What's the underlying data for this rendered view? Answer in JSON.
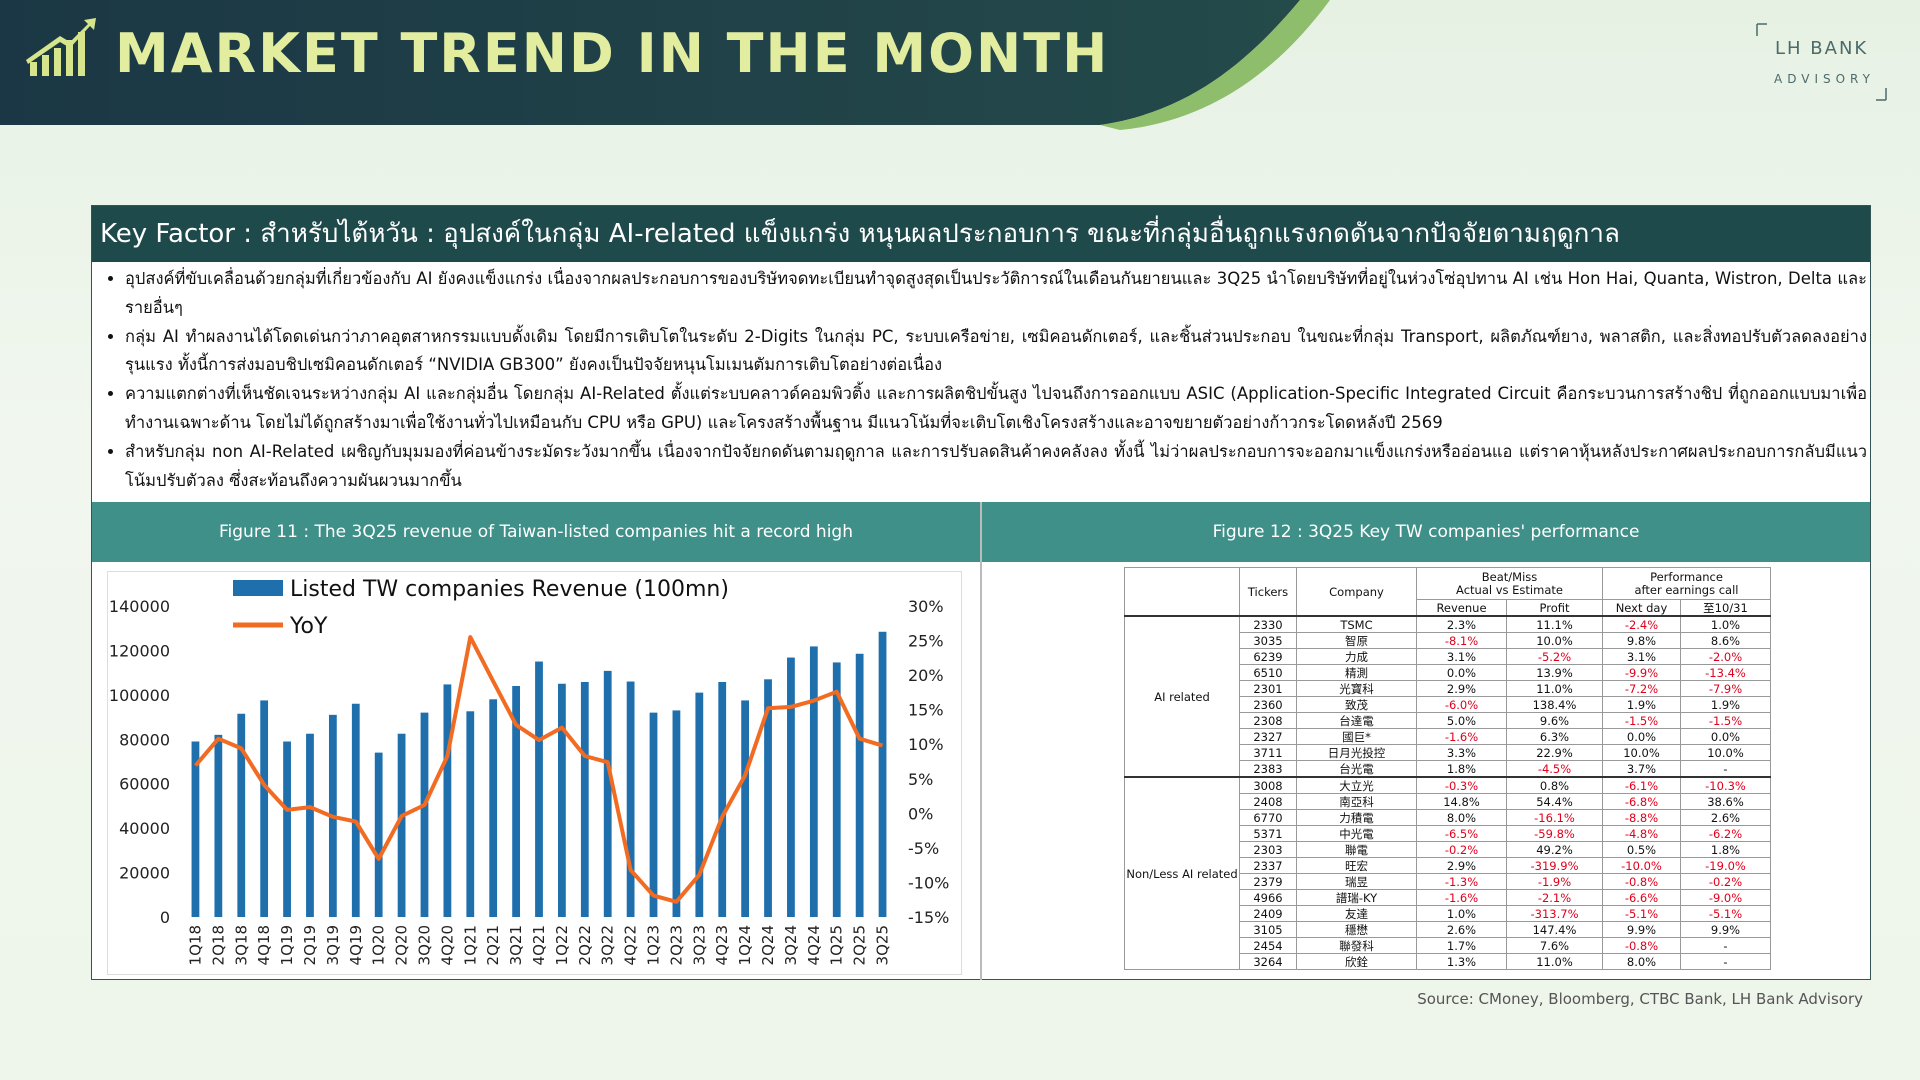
{
  "header": {
    "title": "MARKET TREND IN THE MONTH"
  },
  "logo": {
    "name": "LH BANK",
    "sub": "ADVISORY"
  },
  "key_factor": {
    "title": "Key Factor : สำหรับไต้หวัน : อุปสงค์ในกลุ่ม AI-related แข็งแกร่ง หนุนผลประกอบการ ขณะที่กลุ่มอื่นถูกแรงกดดันจากปัจจัยตามฤดูกาล",
    "bullets": [
      "อุปสงค์ที่ขับเคลื่อนด้วยกลุ่มที่เกี่ยวข้องกับ AI ยังคงแข็งแกร่ง เนื่องจากผลประกอบการของบริษัทจดทะเบียนทำจุดสูงสุดเป็นประวัติการณ์ในเดือนกันยายนและ 3Q25 นำโดยบริษัทที่อยู่ในห่วงโซ่อุปทาน AI เช่น Hon Hai, Quanta, Wistron, Delta และรายอื่นๆ",
      "กลุ่ม AI ทำผลงานได้โดดเด่นกว่าภาคอุตสาหกรรมแบบดั้งเดิม โดยมีการเติบโตในระดับ 2-Digits ในกลุ่ม PC, ระบบเครือข่าย, เซมิคอนดักเตอร์, และชิ้นส่วนประกอบ ในขณะที่กลุ่ม Transport, ผลิตภัณฑ์ยาง, พลาสติก, และสิ่งทอปรับตัวลดลงอย่างรุนแรง ทั้งนี้การส่งมอบชิปเซมิคอนดักเตอร์ “NVIDIA GB300” ยังคงเป็นปัจจัยหนุนโมเมนตัมการเติบโตอย่างต่อเนื่อง",
      "ความแตกต่างที่เห็นชัดเจนระหว่างกลุ่ม AI และกลุ่มอื่น โดยกลุ่ม AI-Related ตั้งแต่ระบบคลาวด์คอมพิวติ้ง และการผลิตชิปขั้นสูง ไปจนถึงการออกแบบ ASIC (Application-Specific Integrated Circuit คือกระบวนการสร้างชิป ที่ถูกออกแบบมาเพื่อทำงานเฉพาะด้าน โดยไม่ได้ถูกสร้างมาเพื่อใช้งานทั่วไปเหมือนกับ CPU หรือ GPU) และโครงสร้างพื้นฐาน มีแนวโน้มที่จะเติบโตเชิงโครงสร้างและอาจขยายตัวอย่างก้าวกระโดดหลังปี 2569",
      "สำหรับกลุ่ม non AI-Related เผชิญกับมุมมองที่ค่อนข้างระมัดระวังมากขึ้น เนื่องจากปัจจัยกดดันตามฤดูกาล และการปรับลดสินค้าคงคลังลง ทั้งนี้ ไม่ว่าผลประกอบการจะออกมาแข็งแกร่งหรืออ่อนแอ แต่ราคาหุ้นหลังประกาศผลประกอบการกลับมีแนวโน้มปรับตัวลง ซึ่งสะท้อนถึงความผันผวนมากขึ้น"
    ]
  },
  "chart_data": {
    "type": "bar",
    "title": "Figure 11 : The 3Q25 revenue of Taiwan-listed companies hit a record high",
    "categories": [
      "1Q18",
      "2Q18",
      "3Q18",
      "4Q18",
      "1Q19",
      "2Q19",
      "3Q19",
      "4Q19",
      "1Q20",
      "2Q20",
      "3Q20",
      "4Q20",
      "1Q21",
      "2Q21",
      "3Q21",
      "4Q21",
      "1Q22",
      "2Q22",
      "3Q22",
      "4Q22",
      "1Q23",
      "2Q23",
      "3Q23",
      "4Q23",
      "1Q24",
      "2Q24",
      "3Q24",
      "4Q24",
      "1Q25",
      "2Q25",
      "3Q25"
    ],
    "series": [
      {
        "name": "Listed TW companies Revenue (100mn)",
        "type": "bar",
        "color": "#1f6fad",
        "values": [
          79000,
          82000,
          91500,
          97500,
          79000,
          82500,
          91000,
          96000,
          74000,
          82500,
          92000,
          104700,
          92600,
          98000,
          104000,
          115000,
          105000,
          105800,
          110800,
          106000,
          92000,
          93000,
          101000,
          105800,
          97500,
          107000,
          116800,
          121800,
          114600,
          118500,
          128400
        ]
      },
      {
        "name": "YoY",
        "type": "line",
        "axis": "y2",
        "color": "#f26b22",
        "values": [
          6.9,
          10.8,
          9.4,
          4.1,
          0.5,
          0.9,
          -0.5,
          -1.2,
          -6.6,
          -0.4,
          1.2,
          8.3,
          25.5,
          19.1,
          12.8,
          10.6,
          12.4,
          8.3,
          7.4,
          -8.2,
          -11.9,
          -12.8,
          -8.9,
          -0.5,
          5.5,
          15.2,
          15.4,
          16.3,
          17.6,
          10.8,
          9.8
        ]
      }
    ],
    "ylim": [
      0,
      140000
    ],
    "yticks": [
      0,
      20000,
      40000,
      60000,
      80000,
      100000,
      120000,
      140000
    ],
    "y2lim": [
      -15,
      30
    ],
    "y2ticks": [
      {
        "value": -15,
        "label": "-15%"
      },
      {
        "value": -10,
        "label": "-10%"
      },
      {
        "value": -5,
        "label": "-5%"
      },
      {
        "value": 0,
        "label": "0%"
      },
      {
        "value": 5,
        "label": "5%"
      },
      {
        "value": 10,
        "label": "10%"
      },
      {
        "value": 15,
        "label": "15%"
      },
      {
        "value": 20,
        "label": "20%"
      },
      {
        "value": 25,
        "label": "25%"
      },
      {
        "value": 30,
        "label": "30%"
      }
    ],
    "grid": false
  },
  "table": {
    "title": "Figure 12 : 3Q25 Key TW companies' performance",
    "header": {
      "tickers": "Tickers",
      "company": "Company",
      "beat": "Beat/Miss",
      "beat_sub": "Actual vs Estimate",
      "revenue": "Revenue",
      "profit": "Profit",
      "perf": "Performance",
      "perf_sub": "after earnings call",
      "next_day": "Next day",
      "to_date": "至10/31"
    },
    "groups": [
      {
        "name": "AI related",
        "rows": [
          [
            "2330",
            "TSMC",
            "2.3%",
            "11.1%",
            "-2.4%",
            "1.0%"
          ],
          [
            "3035",
            "智原",
            "-8.1%",
            "10.0%",
            "9.8%",
            "8.6%"
          ],
          [
            "6239",
            "力成",
            "3.1%",
            "-5.2%",
            "3.1%",
            "-2.0%"
          ],
          [
            "6510",
            "精測",
            "0.0%",
            "13.9%",
            "-9.9%",
            "-13.4%"
          ],
          [
            "2301",
            "光寶科",
            "2.9%",
            "11.0%",
            "-7.2%",
            "-7.9%"
          ],
          [
            "2360",
            "致茂",
            "-6.0%",
            "138.4%",
            "1.9%",
            "1.9%"
          ],
          [
            "2308",
            "台達電",
            "5.0%",
            "9.6%",
            "-1.5%",
            "-1.5%"
          ],
          [
            "2327",
            "國巨*",
            "-1.6%",
            "6.3%",
            "0.0%",
            "0.0%"
          ],
          [
            "3711",
            "日月光投控",
            "3.3%",
            "22.9%",
            "10.0%",
            "10.0%"
          ],
          [
            "2383",
            "台光電",
            "1.8%",
            "-4.5%",
            "3.7%",
            "-"
          ]
        ]
      },
      {
        "name": "Non/Less AI related",
        "rows": [
          [
            "3008",
            "大立光",
            "-0.3%",
            "0.8%",
            "-6.1%",
            "-10.3%"
          ],
          [
            "2408",
            "南亞科",
            "14.8%",
            "54.4%",
            "-6.8%",
            "38.6%"
          ],
          [
            "6770",
            "力積電",
            "8.0%",
            "-16.1%",
            "-8.8%",
            "2.6%"
          ],
          [
            "5371",
            "中光電",
            "-6.5%",
            "-59.8%",
            "-4.8%",
            "-6.2%"
          ],
          [
            "2303",
            "聯電",
            "-0.2%",
            "49.2%",
            "0.5%",
            "1.8%"
          ],
          [
            "2337",
            "旺宏",
            "2.9%",
            "-319.9%",
            "-10.0%",
            "-19.0%"
          ],
          [
            "2379",
            "瑞昱",
            "-1.3%",
            "-1.9%",
            "-0.8%",
            "-0.2%"
          ],
          [
            "4966",
            "譜瑞-KY",
            "-1.6%",
            "-2.1%",
            "-6.6%",
            "-9.0%"
          ],
          [
            "2409",
            "友達",
            "1.0%",
            "-313.7%",
            "-5.1%",
            "-5.1%"
          ],
          [
            "3105",
            "穩懋",
            "2.6%",
            "147.4%",
            "9.9%",
            "9.9%"
          ],
          [
            "2454",
            "聯發科",
            "1.7%",
            "7.6%",
            "-0.8%",
            "-"
          ],
          [
            "3264",
            "欣銓",
            "1.3%",
            "11.0%",
            "8.0%",
            "-"
          ]
        ]
      }
    ]
  },
  "source": "Source: CMoney, Bloomberg, CTBC Bank, LH Bank Advisory"
}
